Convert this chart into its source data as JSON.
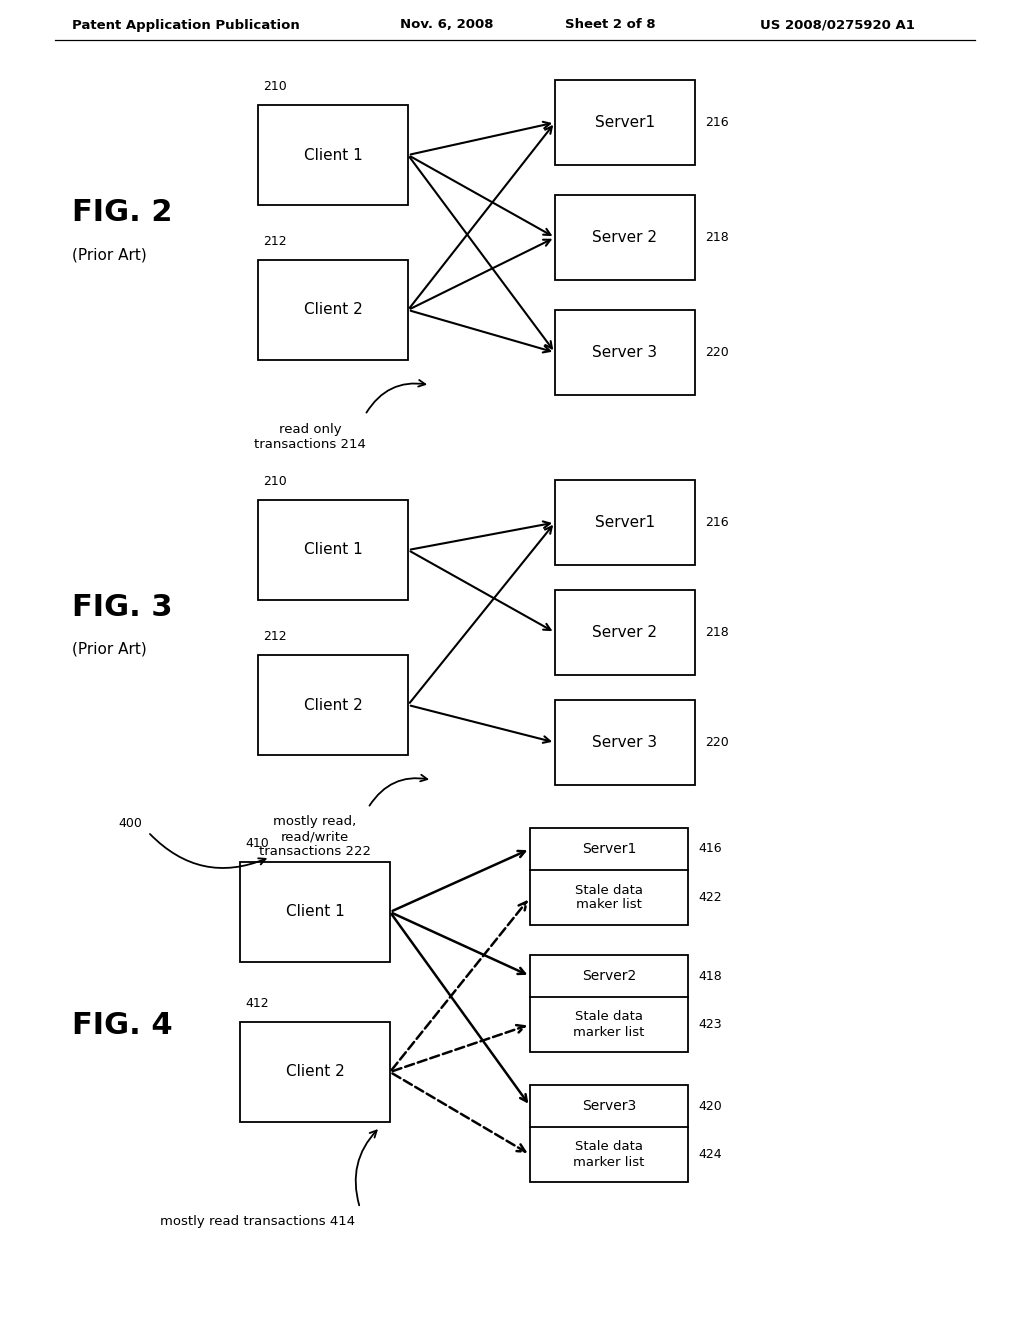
{
  "bg_color": "#ffffff",
  "header_text": "Patent Application Publication",
  "header_date": "Nov. 6, 2008",
  "header_sheet": "Sheet 2 of 8",
  "header_patent": "US 2008/0275920 A1",
  "fig2": {
    "label": "FIG. 2",
    "sublabel": "(Prior Art)",
    "client1_label": "Client 1",
    "client1_num": "210",
    "client2_label": "Client 2",
    "client2_num": "212",
    "server1_label": "Server1",
    "server1_num": "216",
    "server2_label": "Server 2",
    "server2_num": "218",
    "server3_label": "Server 3",
    "server3_num": "220",
    "tx_label": "read only\ntransactions 214"
  },
  "fig3": {
    "label": "FIG. 3",
    "sublabel": "(Prior Art)",
    "client1_label": "Client 1",
    "client1_num": "210",
    "client2_label": "Client 2",
    "client2_num": "212",
    "server1_label": "Server1",
    "server1_num": "216",
    "server2_label": "Server 2",
    "server2_num": "218",
    "server3_label": "Server 3",
    "server3_num": "220",
    "tx_label": "mostly read,\nread/write\ntransactions 222"
  },
  "fig4": {
    "label": "FIG. 4",
    "fig_num": "400",
    "client1_label": "Client 1",
    "client1_num": "410",
    "client2_label": "Client 2",
    "client2_num": "412",
    "server1_label": "Server1",
    "server1_num": "416",
    "stale1_label": "Stale data\nmaker list",
    "stale1_num": "422",
    "server2_label": "Server2",
    "server2_num": "418",
    "stale2_label": "Stale data\nmarker list",
    "stale2_num": "423",
    "server3_label": "Server3",
    "server3_num": "420",
    "stale3_label": "Stale data\nmarker list",
    "stale3_num": "424",
    "tx_label": "mostly read transactions 414"
  }
}
